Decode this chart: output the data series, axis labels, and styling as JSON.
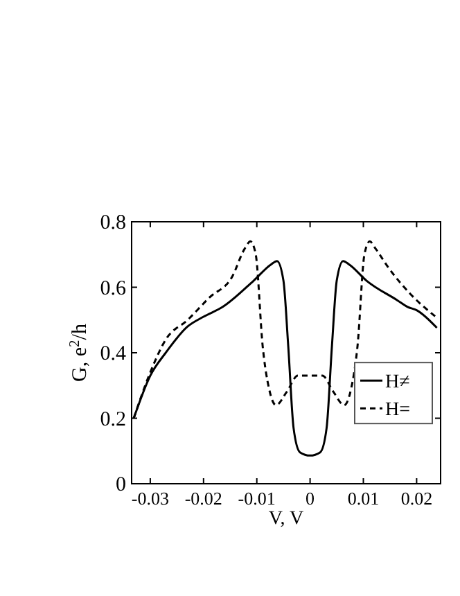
{
  "chart_data": {
    "type": "line",
    "xlabel": "V, V",
    "ylabel": "G, e$^{2}$/h",
    "xlim": [
      -0.0335,
      0.0245
    ],
    "ylim": [
      0,
      0.8
    ],
    "xticks": [
      -0.03,
      -0.02,
      -0.01,
      0,
      0.01,
      0.02
    ],
    "yticks": [
      0,
      0.2,
      0.4,
      0.6,
      0.8
    ],
    "legend": "right",
    "grid": false,
    "series": [
      {
        "name": "H≠",
        "color": "#000000",
        "line_style": "solid",
        "x": [
          -0.0331,
          -0.03,
          -0.0271,
          -0.023,
          -0.02,
          -0.0164,
          -0.0106,
          -0.0073,
          -0.0062,
          -0.005,
          -0.0041,
          -0.0031,
          -0.0019,
          0,
          0.0019,
          0.0031,
          0.0041,
          0.005,
          0.0062,
          0.0073,
          0.0106,
          0.0164,
          0.0183,
          0.02,
          0.0238
        ],
        "values": [
          0.2,
          0.33,
          0.4,
          0.48,
          0.51,
          0.54,
          0.62,
          0.67,
          0.68,
          0.62,
          0.42,
          0.17,
          0.096,
          0.086,
          0.096,
          0.17,
          0.42,
          0.62,
          0.68,
          0.67,
          0.62,
          0.56,
          0.54,
          0.53,
          0.476
        ]
      },
      {
        "name": "H=",
        "color": "#000000",
        "line_style": "dashed",
        "x": [
          -0.0331,
          -0.03,
          -0.0271,
          -0.023,
          -0.0188,
          -0.0147,
          -0.0122,
          -0.0112,
          -0.0102,
          -0.0089,
          -0.0077,
          -0.0064,
          -0.0044,
          -0.0023,
          0,
          0.0023,
          0.0044,
          0.0064,
          0.0077,
          0.0089,
          0.0102,
          0.0112,
          0.0122,
          0.0147,
          0.0188,
          0.0238
        ],
        "values": [
          0.2,
          0.34,
          0.44,
          0.5,
          0.57,
          0.63,
          0.72,
          0.74,
          0.7,
          0.42,
          0.29,
          0.24,
          0.28,
          0.33,
          0.33,
          0.33,
          0.28,
          0.24,
          0.29,
          0.42,
          0.7,
          0.74,
          0.72,
          0.66,
          0.58,
          0.507
        ]
      }
    ]
  }
}
